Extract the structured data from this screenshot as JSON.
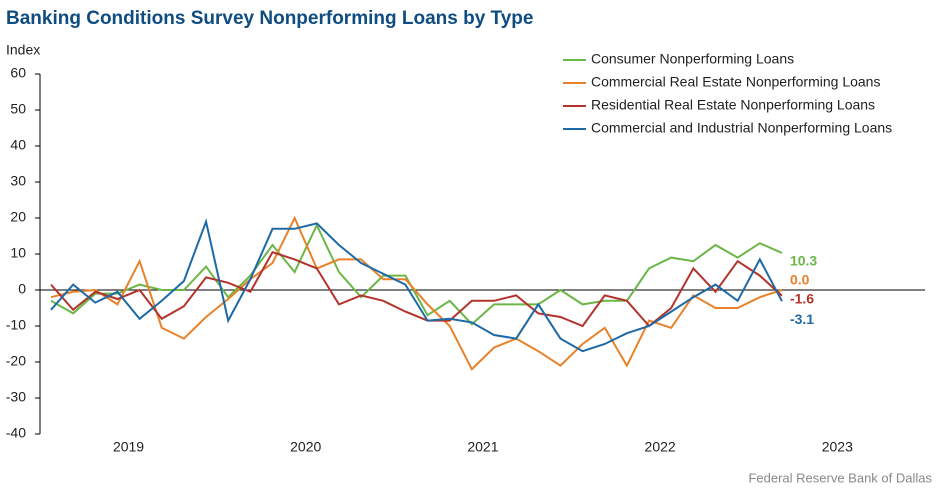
{
  "chart_data": {
    "type": "line",
    "title": "Banking Conditions Survey Nonperforming Loans by Type",
    "y_label": "Index",
    "source": "Federal Reserve Bank of Dallas",
    "categories": [
      "2019",
      null,
      null,
      null,
      null,
      null,
      null,
      null,
      "2020",
      null,
      null,
      null,
      null,
      null,
      null,
      null,
      "2021",
      null,
      null,
      null,
      null,
      null,
      null,
      null,
      "2022",
      null,
      null,
      null,
      null,
      null,
      null,
      null,
      "2023",
      null
    ],
    "ylim": [
      -40,
      60
    ],
    "yticks": [
      -40,
      -30,
      -20,
      -10,
      0,
      10,
      20,
      30,
      40,
      50,
      60
    ],
    "legend": "top-right",
    "series": [
      {
        "name": "Consumer Nonperforming Loans",
        "color": "#6cb648",
        "end_label": "10.3",
        "values": [
          -3,
          -6.5,
          -1,
          -1,
          1.5,
          0,
          0,
          6.5,
          -2,
          4,
          12.5,
          5,
          18,
          5,
          -2,
          4,
          4,
          -7,
          -3,
          -9.5,
          -4,
          -4,
          -4,
          0,
          -4,
          -3,
          -3,
          6,
          9,
          8,
          12.5,
          9,
          13,
          10.3
        ]
      },
      {
        "name": "Commercial Real Estate Nonperforming Loans",
        "color": "#e8822a",
        "end_label": "0.0",
        "values": [
          -2,
          -0.5,
          0,
          -4,
          8,
          -10.5,
          -13.5,
          -7.5,
          -2.5,
          3,
          7.5,
          20,
          6,
          8.5,
          8.5,
          3,
          3,
          -4,
          -10,
          -22,
          -16,
          -13.5,
          -17,
          -21,
          -15,
          -10.5,
          -21,
          -8.5,
          -10.5,
          -1.5,
          -5,
          -5,
          -2,
          0
        ]
      },
      {
        "name": "Residential Real Estate Nonperforming Loans",
        "color": "#b3332d",
        "end_label": "-1.6",
        "values": [
          1.5,
          -5.5,
          -0.5,
          -2.5,
          0,
          -8,
          -4.5,
          3.5,
          2,
          -0.5,
          10.5,
          8.5,
          6,
          -4,
          -1.5,
          -3,
          -6,
          -8.5,
          -8.5,
          -3,
          -3,
          -1.5,
          -6.5,
          -7.5,
          -10,
          -1.5,
          -3,
          -10,
          -5,
          6,
          -0.5,
          8,
          4,
          -1.6
        ]
      },
      {
        "name": "Commercial and Industrial Nonperforming Loans",
        "color": "#1e6aa6",
        "end_label": "-3.1",
        "values": [
          -5.5,
          1.5,
          -3.5,
          -0.5,
          -8,
          -3,
          2.5,
          19,
          -8.5,
          3,
          17,
          17,
          18.5,
          12.5,
          7.5,
          4.5,
          1.5,
          -8.5,
          -8,
          -9,
          -12.5,
          -13.5,
          -4,
          -13.5,
          -17,
          -15,
          -12,
          -10,
          -6,
          -2,
          1.5,
          -3,
          8.5,
          -3.1
        ]
      }
    ]
  }
}
